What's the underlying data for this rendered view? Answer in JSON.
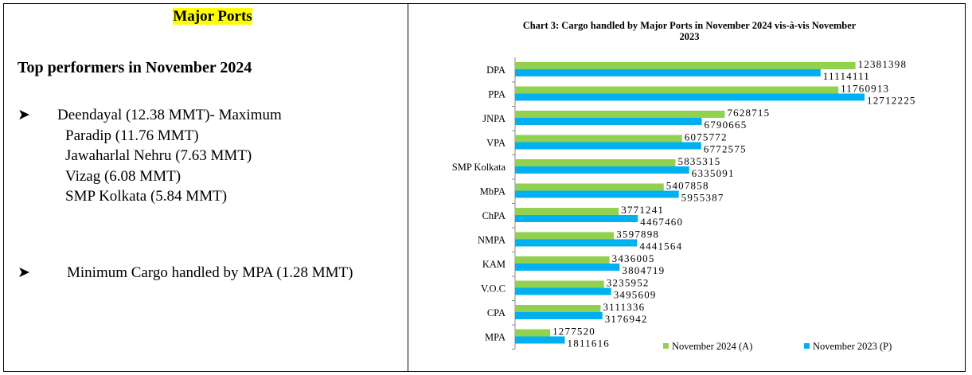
{
  "document": {
    "heading": "Major Ports",
    "subheading": "Top performers in November 2024",
    "bullets": [
      {
        "lines": [
          "Deendayal (12.38 MMT)- Maximum",
          "Paradip (11.76 MMT)",
          "Jawaharlal Nehru (7.63 MMT)",
          "Vizag (6.08 MMT)",
          "SMP Kolkata (5.84 MMT)"
        ]
      },
      {
        "lines": [
          "Minimum Cargo handled by MPA (1.28 MMT)"
        ]
      }
    ]
  },
  "chart_data": {
    "type": "bar",
    "orientation": "horizontal",
    "title": "Chart 3: Cargo handled by Major Ports in November  2024 vis-à-vis November 2023",
    "categories": [
      "DPA",
      "PPA",
      "JNPA",
      "VPA",
      "SMP Kolkata",
      "MbPA",
      "ChPA",
      "NMPA",
      "KAM",
      "V.O.C",
      "CPA",
      "MPA"
    ],
    "series": [
      {
        "name": "November 2024 (A)",
        "color": "#92d050",
        "values": [
          12381398,
          11760913,
          7628715,
          6075772,
          5835315,
          5407858,
          3771241,
          3597898,
          3436005,
          3235952,
          3111336,
          1277520
        ]
      },
      {
        "name": "November 2023 (P)",
        "color": "#00b0f0",
        "values": [
          11114111,
          12712225,
          6790665,
          6772575,
          6335091,
          5955387,
          4467460,
          4441564,
          3804719,
          3495609,
          3176942,
          1811616
        ]
      }
    ],
    "legend": "bottom-right"
  }
}
